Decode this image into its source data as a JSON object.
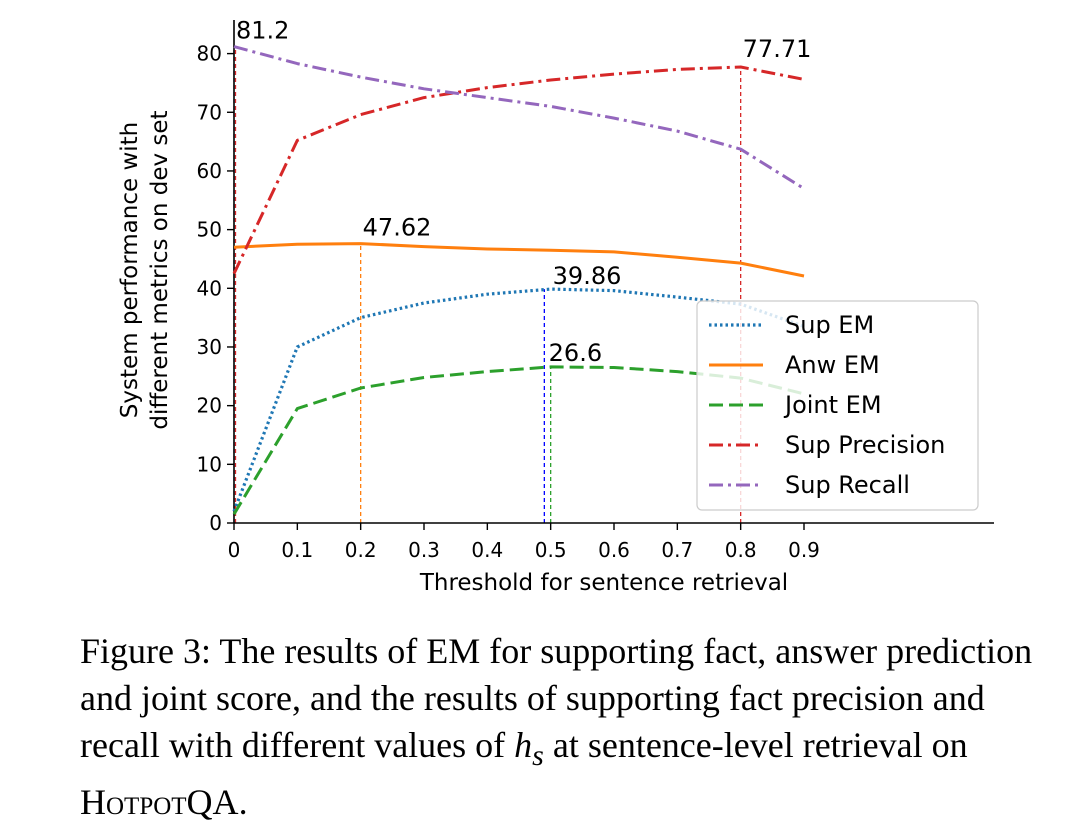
{
  "chart_data": {
    "type": "line",
    "xlabel": "Threshold for sentence retrieval",
    "ylabel": [
      "System performance with",
      "different metrics on dev set"
    ],
    "x": [
      0,
      0.1,
      0.2,
      0.3,
      0.4,
      0.5,
      0.6,
      0.7,
      0.8,
      0.9
    ],
    "xticks": [
      "0",
      "0.1",
      "0.2",
      "0.3",
      "0.4",
      "0.5",
      "0.6",
      "0.7",
      "0.8",
      "0.9"
    ],
    "yticks": [
      0,
      10,
      20,
      30,
      40,
      50,
      60,
      70,
      80
    ],
    "xlim": [
      0,
      1.2
    ],
    "ylim": [
      0,
      83
    ],
    "grid": false,
    "legend_position": "lower-right",
    "series": [
      {
        "name": "Sup EM",
        "color": "#1f77b4",
        "style": "dotted",
        "values": [
          2,
          30,
          35,
          37.5,
          39,
          39.86,
          39.6,
          38.5,
          37.3,
          33.5
        ]
      },
      {
        "name": "Anw EM",
        "color": "#ff7f0e",
        "style": "solid",
        "values": [
          47,
          47.5,
          47.62,
          47.1,
          46.7,
          46.5,
          46.2,
          45.3,
          44.3,
          42.1
        ]
      },
      {
        "name": "Joint EM",
        "color": "#2ca02c",
        "style": "dashed",
        "values": [
          1.5,
          19.5,
          23,
          24.8,
          25.8,
          26.6,
          26.5,
          25.8,
          24.7,
          22
        ]
      },
      {
        "name": "Sup Precision",
        "color": "#d62728",
        "style": "dashdot",
        "values": [
          42.5,
          65.2,
          69.6,
          72.5,
          74.2,
          75.5,
          76.5,
          77.3,
          77.71,
          75.6
        ]
      },
      {
        "name": "Sup Recall",
        "color": "#9467bd",
        "style": "dashdot",
        "values": [
          81.2,
          78.3,
          76,
          74,
          72.5,
          71,
          69,
          66.8,
          63.7,
          57
        ]
      }
    ],
    "vlines": [
      {
        "x": 0,
        "y": 81.2,
        "color": "#9467bd"
      },
      {
        "x": 0,
        "y": 81.2,
        "color": "#d62728"
      },
      {
        "x": 0.2,
        "y": 47.62,
        "color": "#ff7f0e"
      },
      {
        "x": 0.49,
        "y": 39.86,
        "color": "#0000ff"
      },
      {
        "x": 0.5,
        "y": 26.6,
        "color": "#2ca02c"
      },
      {
        "x": 0.8,
        "y": 77.71,
        "color": "#d62728"
      }
    ],
    "annotations": [
      {
        "text": "81.2",
        "x": 0,
        "y": 81.2
      },
      {
        "text": "77.71",
        "x": 0.8,
        "y": 77.71
      },
      {
        "text": "47.62",
        "x": 0.2,
        "y": 47.62
      },
      {
        "text": "39.86",
        "x": 0.5,
        "y": 39.86
      },
      {
        "text": "26.6",
        "x": 0.5,
        "y": 26.6
      }
    ]
  },
  "caption": {
    "prefix": "Figure 3: The results of EM for supporting fact, answer prediction and joint score, and the results of supporting fact precision and recall with different values of ",
    "var": "h",
    "sub": "s",
    "middle": " at sentence-level retrieval on ",
    "dataset": "HotpotQA",
    "end": "."
  }
}
